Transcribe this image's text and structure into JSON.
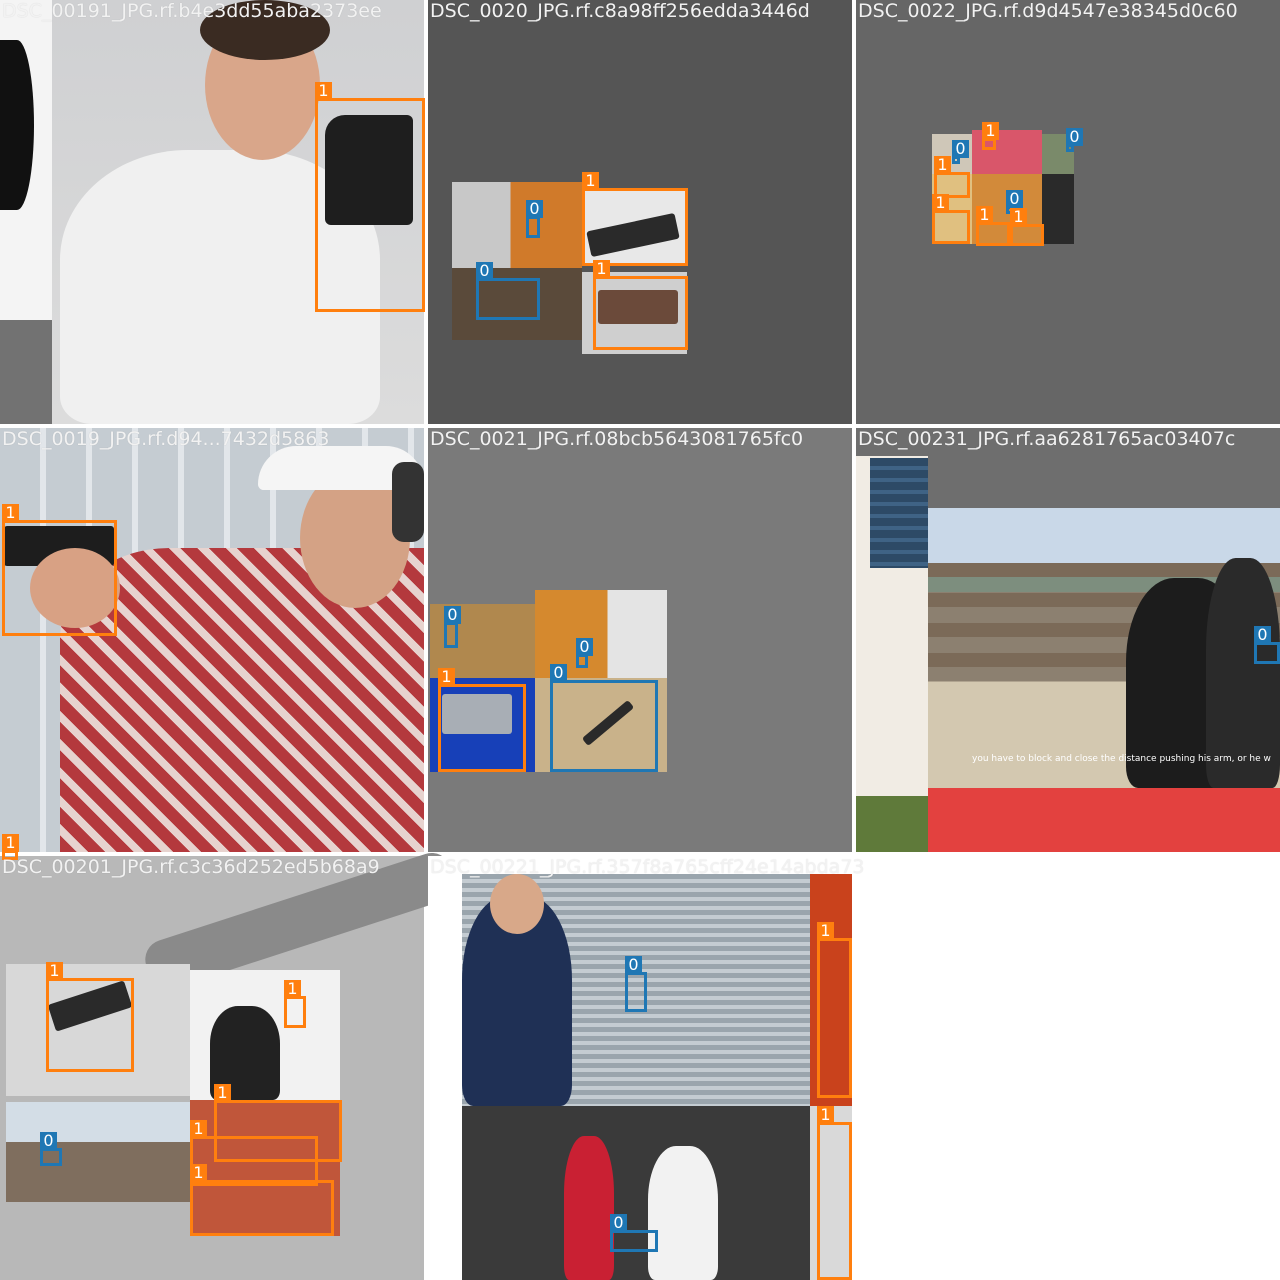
{
  "colors": {
    "class_0": "#1f77b4",
    "class_1": "#ff7f0e",
    "canvas_gray": "#727272",
    "caption": "#f2f2f2"
  },
  "tiles": [
    {
      "caption": "DSC_00191_JPG.rf.b4e3dd55aba2373ee",
      "boxes": [
        {
          "label": "1"
        }
      ]
    },
    {
      "caption": "DSC_0020_JPG.rf.c8a98ff256edda3446d",
      "boxes": [
        {
          "label": "1"
        },
        {
          "label": "1"
        },
        {
          "label": "0"
        },
        {
          "label": "0"
        }
      ]
    },
    {
      "caption": "DSC_0022_JPG.rf.d9d4547e38345d0c60",
      "boxes": [
        {
          "label": "1"
        },
        {
          "label": "0"
        },
        {
          "label": "0"
        },
        {
          "label": "1"
        },
        {
          "label": "0"
        },
        {
          "label": "1"
        },
        {
          "label": "1"
        },
        {
          "label": "1"
        }
      ]
    },
    {
      "caption": "DSC_0019_JPG.rf.d94...7432d5863",
      "boxes": [
        {
          "label": "1"
        },
        {
          "label": "1"
        }
      ]
    },
    {
      "caption": "DSC_0021_JPG.rf.08bcb5643081765fc0",
      "boxes": [
        {
          "label": "0"
        },
        {
          "label": "0"
        },
        {
          "label": "1"
        },
        {
          "label": "0"
        }
      ]
    },
    {
      "caption": "DSC_00231_JPG.rf.aa6281765ac03407c",
      "boxes": [
        {
          "label": "0"
        }
      ],
      "subtitle": "you have to block and close the distance pushing his arm, or he w"
    },
    {
      "caption": "DSC_00201_JPG.rf.c3c36d252ed5b68a9",
      "boxes": [
        {
          "label": "1"
        },
        {
          "label": "1"
        },
        {
          "label": "1"
        },
        {
          "label": "1"
        },
        {
          "label": "1"
        },
        {
          "label": "0"
        }
      ]
    },
    {
      "caption": "DSC_00221_JPG.rf.357f8a765cff24e14abda73",
      "boxes": [
        {
          "label": "0"
        },
        {
          "label": "1"
        },
        {
          "label": "1"
        },
        {
          "label": "0"
        }
      ]
    }
  ]
}
